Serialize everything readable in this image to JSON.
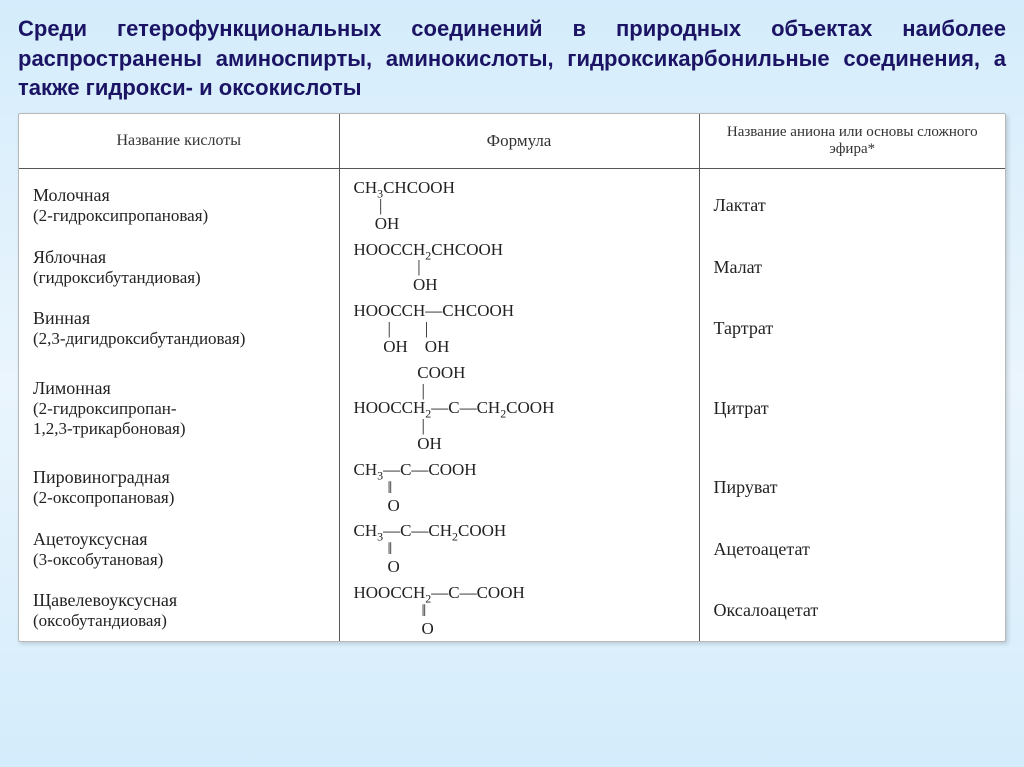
{
  "heading": "Среди гетерофункциональных соединений в природных объектах наиболее распространены аминоспирты, аминокислоты, гидроксикарбонильные соединения, а также гидрокси- и оксокислоты",
  "columns": {
    "c1": "Название кислоты",
    "c2": "Формула",
    "c3": "Название аниона или основы сложного эфира*"
  },
  "rows": [
    {
      "name": "Молочная",
      "iupac": "(2-гидроксипропановая)",
      "formula_html": "CH<sub>3</sub>CHCOOH\n      |\n     OH",
      "anion": "Лактат"
    },
    {
      "name": "Яблочная",
      "iupac": "(гидроксибутандиовая)",
      "formula_html": "HOOCCH<sub>2</sub>CHCOOH\n               |\n              OH",
      "anion": "Малат"
    },
    {
      "name": "Винная",
      "iupac": "(2,3-дигидроксибутандиовая)",
      "formula_html": "HOOCCH—CHCOOH\n        |        |\n       OH    OH",
      "anion": "Тартрат"
    },
    {
      "name": "Лимонная",
      "iupac": "(2-гидроксипропан-\n1,2,3-трикарбоновая)",
      "formula_html": "               COOH\n                |\nHOOCCH<sub>2</sub>—C—CH<sub>2</sub>COOH\n                |\n               OH",
      "anion": "Цитрат"
    },
    {
      "name": "Пировиноградная",
      "iupac": "(2-оксопропановая)",
      "formula_html": "CH<sub>3</sub>—C—COOH\n        ‖\n        O",
      "anion": "Пируват"
    },
    {
      "name": "Ацетоуксусная",
      "iupac": "(3-оксобутановая)",
      "formula_html": "CH<sub>3</sub>—C—CH<sub>2</sub>COOH\n        ‖\n        O",
      "anion": "Ацетоацетат"
    },
    {
      "name": "Щавелевоуксусная",
      "iupac": "(оксобутандиовая)",
      "formula_html": "HOOCCH<sub>2</sub>—C—COOH\n                ‖\n                O",
      "anion": "Оксалоацетат"
    }
  ]
}
